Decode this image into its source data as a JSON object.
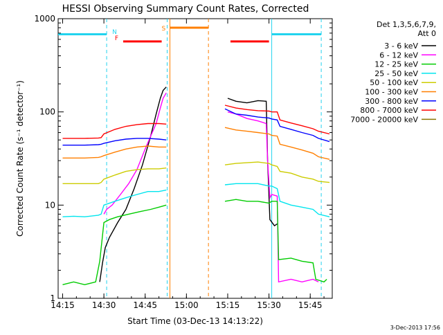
{
  "chart_data": {
    "type": "line",
    "title": "HESSI Observing Summary Count Rates, Corrected",
    "xlabel": "Start Time (03-Dec-13 14:13:22)",
    "ylabel": "Corrected Count Rate (s⁻¹ detector⁻¹)",
    "y_scale": "log",
    "xlim": [
      "14:13:22",
      "15:53:00"
    ],
    "ylim": [
      1,
      1000
    ],
    "x_ticks": [
      "14:15",
      "14:30",
      "14:45",
      "15:00",
      "15:15",
      "15:30",
      "15:45"
    ],
    "y_ticks": [
      "1",
      "10",
      "100",
      "1000"
    ],
    "legend_header": [
      "Det 1,3,5,6,7,9,",
      "Att 0"
    ],
    "legend_position": "outside-right",
    "timestamp": "3-Dec-2013 17:56",
    "flags": [
      {
        "label": "N",
        "color": "#22d3ee"
      },
      {
        "label": "F",
        "color": "#ff0000"
      },
      {
        "label": "S",
        "color": "#ff7f00"
      }
    ],
    "series": [
      {
        "name": "3 - 6 keV",
        "color": "#000000",
        "points": [
          [
            "14:28:30",
            1.5
          ],
          [
            "14:29:30",
            2.4
          ],
          [
            "14:30:30",
            3.5
          ],
          [
            "14:32",
            4.5
          ],
          [
            "14:35",
            6.5
          ],
          [
            "14:38",
            9
          ],
          [
            "14:41",
            15
          ],
          [
            "14:44",
            27
          ],
          [
            "14:47",
            55
          ],
          [
            "14:49",
            95
          ],
          [
            "14:50:30",
            140
          ],
          [
            "14:51:30",
            170
          ],
          [
            "14:52:40",
            185
          ],
          [
            "15:15",
            140
          ],
          [
            "15:18",
            130
          ],
          [
            "15:22",
            125
          ],
          [
            "15:26",
            132
          ],
          [
            "15:29",
            130
          ],
          [
            "15:29:30",
            30
          ],
          [
            "15:30:20",
            7
          ],
          [
            "15:32",
            6
          ],
          [
            "15:33",
            6.3
          ]
        ]
      },
      {
        "name": "6 - 12 keV",
        "color": "#ff00ff",
        "points": [
          [
            "14:30",
            8
          ],
          [
            "14:31",
            9
          ],
          [
            "14:33",
            10
          ],
          [
            "14:36",
            13
          ],
          [
            "14:39",
            17
          ],
          [
            "14:42",
            24
          ],
          [
            "14:45",
            40
          ],
          [
            "14:47",
            55
          ],
          [
            "14:49",
            75
          ],
          [
            "14:50:30",
            110
          ],
          [
            "14:51:30",
            140
          ],
          [
            "14:52:40",
            160
          ],
          [
            "15:15",
            100
          ],
          [
            "15:18",
            95
          ],
          [
            "15:22",
            85
          ],
          [
            "15:26",
            80
          ],
          [
            "15:29",
            75
          ],
          [
            "15:29:30",
            30
          ],
          [
            "15:30:20",
            12
          ],
          [
            "15:31",
            13
          ],
          [
            "15:33",
            12.5
          ],
          [
            "15:33:30",
            1.5
          ],
          [
            "15:38",
            1.6
          ],
          [
            "15:42",
            1.5
          ],
          [
            "15:46",
            1.6
          ],
          [
            "15:48",
            1.5
          ]
        ]
      },
      {
        "name": "12 - 25 keV",
        "color": "#00cc00",
        "points": [
          [
            "14:15:00",
            1.4
          ],
          [
            "14:19:00",
            1.5
          ],
          [
            "14:23:00",
            1.4
          ],
          [
            "14:27:00",
            1.5
          ],
          [
            "14:28:30",
            2.5
          ],
          [
            "14:30",
            6.5
          ],
          [
            "14:32",
            7.0
          ],
          [
            "14:35",
            7.5
          ],
          [
            "14:39",
            8
          ],
          [
            "14:43",
            8.5
          ],
          [
            "14:47",
            9
          ],
          [
            "14:50",
            9.5
          ],
          [
            "14:52:40",
            10
          ],
          [
            "15:14",
            11
          ],
          [
            "15:18",
            11.5
          ],
          [
            "15:22",
            11
          ],
          [
            "15:26",
            11
          ],
          [
            "15:30",
            10.5
          ],
          [
            "15:31",
            11
          ],
          [
            "15:33",
            11
          ],
          [
            "15:33:30",
            2.6
          ],
          [
            "15:38",
            2.7
          ],
          [
            "15:42",
            2.5
          ],
          [
            "15:46",
            2.4
          ],
          [
            "15:47",
            1.6
          ],
          [
            "15:50",
            1.5
          ],
          [
            "15:51",
            1.6
          ]
        ]
      },
      {
        "name": "25 - 50 keV",
        "color": "#00e5ee",
        "points": [
          [
            "14:15",
            7.5
          ],
          [
            "14:19",
            7.6
          ],
          [
            "14:23",
            7.5
          ],
          [
            "14:28",
            7.8
          ],
          [
            "14:29",
            8
          ],
          [
            "14:30",
            10
          ],
          [
            "14:34",
            11
          ],
          [
            "14:38",
            12
          ],
          [
            "14:42",
            13
          ],
          [
            "14:46",
            14
          ],
          [
            "14:50",
            14
          ],
          [
            "14:52:40",
            14.5
          ],
          [
            "15:14",
            16.5
          ],
          [
            "15:18",
            17
          ],
          [
            "15:22",
            17
          ],
          [
            "15:26",
            17
          ],
          [
            "15:30",
            16
          ],
          [
            "15:31",
            16
          ],
          [
            "15:33",
            15
          ],
          [
            "15:34",
            11
          ],
          [
            "15:38",
            10
          ],
          [
            "15:42",
            9.5
          ],
          [
            "15:46",
            9
          ],
          [
            "15:48",
            8
          ],
          [
            "15:52",
            7.5
          ]
        ]
      },
      {
        "name": "50 - 100 keV",
        "color": "#cccc00",
        "points": [
          [
            "14:15",
            17
          ],
          [
            "14:19",
            17
          ],
          [
            "14:23",
            17
          ],
          [
            "14:28",
            17
          ],
          [
            "14:29",
            17.5
          ],
          [
            "14:30",
            19
          ],
          [
            "14:34",
            21
          ],
          [
            "14:38",
            23
          ],
          [
            "14:42",
            24
          ],
          [
            "14:46",
            24.5
          ],
          [
            "14:50",
            24.5
          ],
          [
            "14:52:40",
            25
          ],
          [
            "15:14",
            27
          ],
          [
            "15:18",
            28
          ],
          [
            "15:22",
            28.5
          ],
          [
            "15:26",
            29
          ],
          [
            "15:30",
            28
          ],
          [
            "15:31",
            27
          ],
          [
            "15:33",
            26
          ],
          [
            "15:34",
            23
          ],
          [
            "15:38",
            22
          ],
          [
            "15:42",
            20
          ],
          [
            "15:46",
            19
          ],
          [
            "15:48",
            18
          ],
          [
            "15:52",
            17.5
          ]
        ]
      },
      {
        "name": "100 - 300 keV",
        "color": "#ff7f00",
        "points": [
          [
            "14:15",
            32
          ],
          [
            "14:19",
            32
          ],
          [
            "14:23",
            32
          ],
          [
            "14:28",
            32.5
          ],
          [
            "14:29",
            33
          ],
          [
            "14:30",
            34
          ],
          [
            "14:34",
            37
          ],
          [
            "14:38",
            40
          ],
          [
            "14:42",
            42
          ],
          [
            "14:46",
            43
          ],
          [
            "14:50",
            42
          ],
          [
            "14:52:40",
            42
          ],
          [
            "15:14",
            68
          ],
          [
            "15:18",
            64
          ],
          [
            "15:22",
            62
          ],
          [
            "15:26",
            60
          ],
          [
            "15:30",
            58
          ],
          [
            "15:31",
            56
          ],
          [
            "15:33",
            55
          ],
          [
            "15:34",
            45
          ],
          [
            "15:38",
            42
          ],
          [
            "15:42",
            39
          ],
          [
            "15:46",
            36
          ],
          [
            "15:48",
            33
          ],
          [
            "15:52",
            31
          ]
        ]
      },
      {
        "name": "300 - 800 keV",
        "color": "#0000ff",
        "points": [
          [
            "14:15",
            44
          ],
          [
            "14:19",
            44
          ],
          [
            "14:23",
            44
          ],
          [
            "14:28",
            44.5
          ],
          [
            "14:29",
            45
          ],
          [
            "14:30",
            46
          ],
          [
            "14:34",
            49
          ],
          [
            "14:38",
            51
          ],
          [
            "14:42",
            52
          ],
          [
            "14:46",
            52
          ],
          [
            "14:50",
            51
          ],
          [
            "14:52:40",
            50
          ],
          [
            "15:14",
            108
          ],
          [
            "15:18",
            95
          ],
          [
            "15:22",
            92
          ],
          [
            "15:26",
            88
          ],
          [
            "15:30",
            86
          ],
          [
            "15:31",
            84
          ],
          [
            "15:33",
            82
          ],
          [
            "15:34",
            70
          ],
          [
            "15:38",
            65
          ],
          [
            "15:42",
            60
          ],
          [
            "15:46",
            56
          ],
          [
            "15:48",
            52
          ],
          [
            "15:52",
            48
          ]
        ]
      },
      {
        "name": "800 - 7000 keV",
        "color": "#ff0000",
        "points": [
          [
            "14:15",
            52
          ],
          [
            "14:19",
            52
          ],
          [
            "14:23",
            52
          ],
          [
            "14:28",
            52.5
          ],
          [
            "14:29",
            53
          ],
          [
            "14:30",
            58
          ],
          [
            "14:34",
            65
          ],
          [
            "14:38",
            70
          ],
          [
            "14:42",
            73
          ],
          [
            "14:46",
            75
          ],
          [
            "14:50",
            75
          ],
          [
            "14:52:40",
            74
          ],
          [
            "15:14",
            118
          ],
          [
            "15:18",
            110
          ],
          [
            "15:22",
            106
          ],
          [
            "15:26",
            103
          ],
          [
            "15:30",
            102
          ],
          [
            "15:31",
            100
          ],
          [
            "15:33",
            100
          ],
          [
            "15:34",
            82
          ],
          [
            "15:38",
            76
          ],
          [
            "15:42",
            71
          ],
          [
            "15:46",
            66
          ],
          [
            "15:48",
            62
          ],
          [
            "15:52",
            58
          ]
        ]
      },
      {
        "name": "7000 - 20000 keV",
        "color": "#8b7500",
        "points": []
      }
    ],
    "markers": {
      "night": {
        "color": "#22d3ee",
        "y": 680,
        "ranges": [
          [
            "14:13:22",
            "14:31:00"
          ],
          [
            "15:31:00",
            "15:49:00"
          ]
        ],
        "boundaries": [
          "14:31:00",
          "14:53:00",
          "15:31:00",
          "15:49:00"
        ]
      },
      "flare": {
        "color": "#ff0000",
        "y": 570,
        "ranges": [
          [
            "14:37:00",
            "14:51:00"
          ],
          [
            "15:16:00",
            "15:30:00"
          ]
        ]
      },
      "saa": {
        "color": "#ff7f00",
        "y": 800,
        "ranges": [
          [
            "14:54:00",
            "15:08:00"
          ]
        ],
        "boundaries": [
          "14:54:00",
          "15:08:00"
        ]
      }
    }
  }
}
